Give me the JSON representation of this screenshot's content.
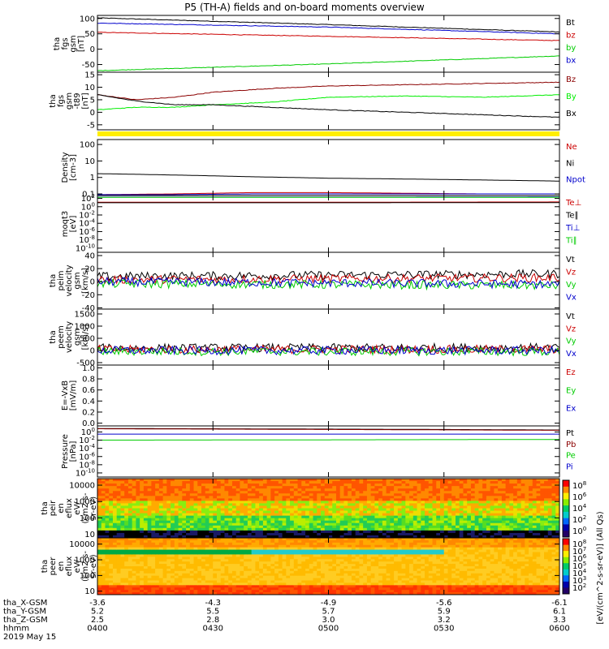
{
  "title": "P5 (TH-A) fields and on-board moments overview",
  "footer": {
    "row_labels": [
      "tha_X-GSM",
      "tha_Y-GSM",
      "tha_Z-GSM",
      "hhmm",
      "2019 May 15"
    ],
    "columns": [
      [
        "-3.6",
        "5.2",
        "2.5",
        "0400"
      ],
      [
        "-4.3",
        "5.5",
        "2.8",
        "0430"
      ],
      [
        "-4.9",
        "5.7",
        "3.0",
        "0500"
      ],
      [
        "-5.6",
        "5.9",
        "3.2",
        "0530"
      ],
      [
        "-6.1",
        "6.1",
        "3.3",
        "0600"
      ]
    ]
  },
  "colorbar_labels": {
    "top": [
      "10^8",
      "10^6",
      "10^4",
      "10^2",
      "10^0"
    ],
    "bottom": [
      "10^8",
      "10^7",
      "10^6",
      "10^5",
      "10^4",
      "10^3",
      "10^2"
    ],
    "unit": "[eV/(cm^2-s-sr-eV)] (All Qs)"
  },
  "chart_data": [
    {
      "type": "line",
      "name": "fgs_gsm",
      "ylabel": [
        "tha",
        "fgs",
        "gsm",
        "[nT]"
      ],
      "ylim": [
        -75,
        110
      ],
      "yticks": [
        "100",
        "50",
        "0",
        "-50"
      ],
      "series": [
        {
          "name": "Bt",
          "color": "#000000",
          "x": [
            0,
            60,
            120
          ],
          "y": [
            102,
            80,
            56
          ]
        },
        {
          "name": "bz",
          "color": "#cc0000",
          "x": [
            0,
            60,
            120
          ],
          "y": [
            55,
            42,
            28
          ]
        },
        {
          "name": "by",
          "color": "#00cc00",
          "x": [
            0,
            60,
            120
          ],
          "y": [
            -70,
            -48,
            -22
          ]
        },
        {
          "name": "bx",
          "color": "#0000cc",
          "x": [
            0,
            60,
            120
          ],
          "y": [
            85,
            72,
            50
          ]
        }
      ]
    },
    {
      "type": "line",
      "name": "fgs_gsm_t89",
      "ylabel": [
        "tha",
        "fgs",
        "gsm",
        "-t89",
        "[nT]"
      ],
      "ylim": [
        -7,
        16
      ],
      "yticks": [
        "15",
        "10",
        "5",
        "0",
        "-5"
      ],
      "series": [
        {
          "name": "Bz",
          "color": "#8b0000",
          "x": [
            0,
            10,
            20,
            30,
            45,
            60,
            80,
            100,
            120
          ],
          "y": [
            7,
            5,
            6,
            8,
            9.5,
            10.5,
            11,
            11.5,
            12
          ]
        },
        {
          "name": "By",
          "color": "#00ee00",
          "x": [
            0,
            10,
            20,
            30,
            45,
            60,
            80,
            100,
            120
          ],
          "y": [
            1,
            2,
            2,
            3,
            4,
            6,
            6.5,
            6,
            7
          ]
        },
        {
          "name": "Bx",
          "color": "#000000",
          "x": [
            0,
            10,
            20,
            30,
            45,
            60,
            80,
            100,
            120
          ],
          "y": [
            7,
            4.5,
            3,
            3,
            2,
            1,
            0,
            -1,
            -2
          ]
        }
      ]
    },
    {
      "type": "line",
      "name": "density",
      "ylabel": [
        "Density",
        "[cm-3]"
      ],
      "scale": "log",
      "ylim": [
        0.08,
        200
      ],
      "yticks": [
        "100",
        "10",
        "1",
        "0.1"
      ],
      "series": [
        {
          "name": "Ne",
          "color": "#cc0000",
          "x": [
            0,
            20,
            40,
            60,
            80,
            100,
            120
          ],
          "y": [
            0.09,
            0.1,
            0.12,
            0.12,
            0.11,
            0.1,
            0.1
          ]
        },
        {
          "name": "Ni",
          "color": "#000000",
          "x": [
            0,
            20,
            40,
            60,
            80,
            100,
            120
          ],
          "y": [
            1.7,
            1.4,
            1.1,
            0.9,
            0.8,
            0.7,
            0.6
          ]
        },
        {
          "name": "Npot",
          "color": "#0000cc",
          "x": [
            0,
            20,
            40,
            60,
            80,
            100,
            120
          ],
          "y": [
            0.09,
            0.09,
            0.1,
            0.1,
            0.1,
            0.1,
            0.1
          ]
        }
      ]
    },
    {
      "type": "line",
      "name": "temperature",
      "ylabel": [
        "moqt3",
        "[eV]"
      ],
      "scale": "log",
      "ylim": [
        1e-11,
        500
      ],
      "yticks": [
        "10^2",
        "10^0",
        "10^-2",
        "10^-4",
        "10^-6",
        "10^-8",
        "10^-10"
      ],
      "series": [
        {
          "name": "Te⊥",
          "color": "#cc0000",
          "x": [
            0,
            60,
            120
          ],
          "y": [
            12,
            12,
            14
          ]
        },
        {
          "name": "Te∥",
          "color": "#000000",
          "x": [
            0,
            60,
            120
          ],
          "y": [
            9,
            9,
            10
          ]
        },
        {
          "name": "Ti⊥",
          "color": "#0000cc",
          "x": [
            0,
            60,
            120
          ],
          "y": [
            200,
            200,
            220
          ]
        },
        {
          "name": "Ti∥",
          "color": "#00cc00",
          "x": [
            0,
            60,
            120
          ],
          "y": [
            180,
            180,
            190
          ]
        }
      ]
    },
    {
      "type": "line",
      "name": "peim_velocity",
      "ylabel": [
        "tha",
        "peim",
        "velocity",
        "gsm",
        "[km/s]"
      ],
      "ylim": [
        -42,
        45
      ],
      "yticks": [
        "40",
        "20",
        "0",
        "-20",
        "-40"
      ],
      "series": [
        {
          "name": "Vt",
          "color": "#000000",
          "x": [
            0,
            120
          ],
          "y": [
            8,
            12
          ]
        },
        {
          "name": "Vz",
          "color": "#cc0000",
          "x": [
            0,
            120
          ],
          "y": [
            3,
            6
          ]
        },
        {
          "name": "Vy",
          "color": "#00cc00",
          "x": [
            0,
            120
          ],
          "y": [
            -3,
            -6
          ]
        },
        {
          "name": "Vx",
          "color": "#0000cc",
          "x": [
            0,
            120
          ],
          "y": [
            0,
            -4
          ]
        }
      ]
    },
    {
      "type": "line",
      "name": "peem_velocity",
      "ylabel": [
        "tha",
        "peem",
        "velocity",
        "gsm",
        "[km/s]"
      ],
      "ylim": [
        -600,
        1700
      ],
      "yticks": [
        "1500",
        "1000",
        "500",
        "0",
        "-500"
      ],
      "series": [
        {
          "name": "Vt",
          "color": "#000000",
          "x": [
            0,
            120
          ],
          "y": [
            100,
            120
          ]
        },
        {
          "name": "Vz",
          "color": "#cc0000",
          "x": [
            0,
            120
          ],
          "y": [
            40,
            50
          ]
        },
        {
          "name": "Vy",
          "color": "#00cc00",
          "x": [
            0,
            120
          ],
          "y": [
            -40,
            -50
          ]
        },
        {
          "name": "Vx",
          "color": "#0000cc",
          "x": [
            0,
            120
          ],
          "y": [
            0,
            0
          ]
        }
      ]
    },
    {
      "type": "line",
      "name": "efield",
      "ylabel": [
        "E=-VxB",
        "[mV/m]"
      ],
      "ylim": [
        -0.05,
        1.05
      ],
      "yticks": [
        "1.0",
        "0.8",
        "0.6",
        "0.4",
        "0.2",
        "0.0"
      ],
      "series": [
        {
          "name": "Ez",
          "color": "#cc0000",
          "x": [],
          "y": []
        },
        {
          "name": "Ey",
          "color": "#00cc00",
          "x": [],
          "y": []
        },
        {
          "name": "Ex",
          "color": "#0000cc",
          "x": [],
          "y": []
        }
      ]
    },
    {
      "type": "line",
      "name": "pressure",
      "ylabel": [
        "Pressure",
        "[nPa]"
      ],
      "scale": "log",
      "ylim": [
        1e-11,
        30
      ],
      "yticks": [
        "10^0",
        "10^-2",
        "10^-4",
        "10^-6",
        "10^-8",
        "10^-10"
      ],
      "series": [
        {
          "name": "Pt",
          "color": "#000000",
          "x": [
            0,
            60,
            120
          ],
          "y": [
            7,
            5,
            3
          ]
        },
        {
          "name": "Pb",
          "color": "#8b0000",
          "x": [
            0,
            60,
            120
          ],
          "y": [
            6,
            4,
            2.5
          ]
        },
        {
          "name": "Pe",
          "color": "#00cc00",
          "x": [
            0,
            60,
            120
          ],
          "y": [
            0.01,
            0.012,
            0.015
          ]
        },
        {
          "name": "Pi",
          "color": "#0000cc",
          "x": [
            0,
            60,
            120
          ],
          "y": [
            0.3,
            0.3,
            0.3
          ]
        }
      ]
    },
    {
      "type": "heatmap",
      "name": "peir_eflux",
      "ylabel": [
        "tha",
        "peir",
        "en",
        "eflux",
        "eV/",
        "(cm2-s-",
        "sr-eV)"
      ],
      "scale": "log",
      "ylim": [
        6,
        25000
      ],
      "yticks": [
        "10000",
        "1000",
        "100",
        "10"
      ]
    },
    {
      "type": "heatmap",
      "name": "peer_eflux",
      "ylabel": [
        "tha",
        "peer",
        "en",
        "eflux",
        "eV/",
        "(cm2-s-",
        "sr-eV)"
      ],
      "scale": "log",
      "ylim": [
        6,
        25000
      ],
      "yticks": [
        "10000",
        "1000",
        "100",
        "10"
      ]
    }
  ]
}
